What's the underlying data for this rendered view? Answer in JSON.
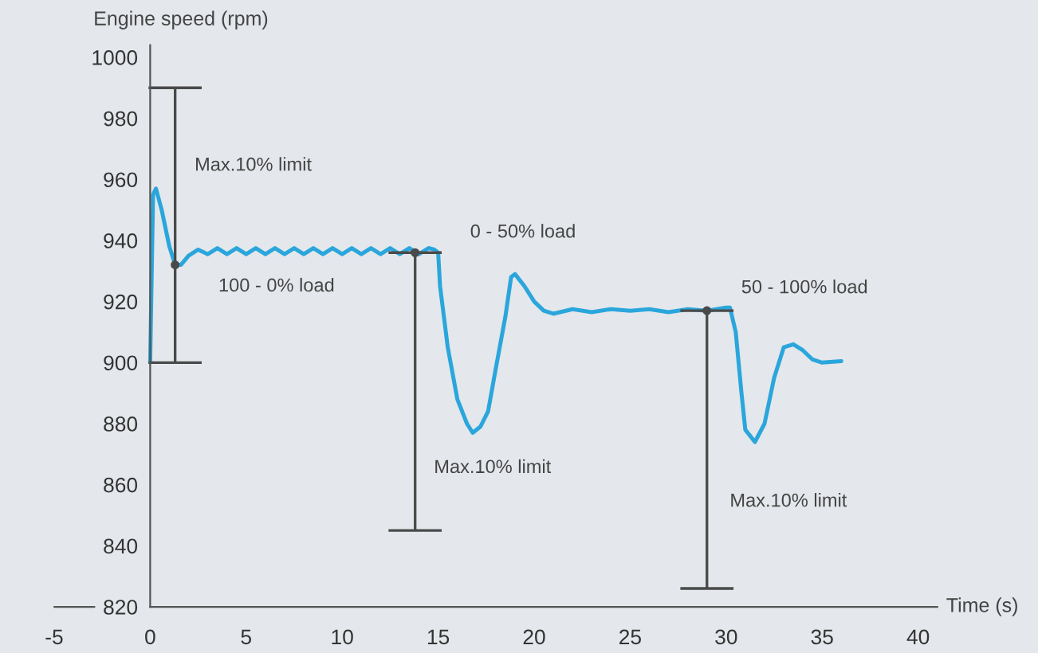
{
  "chart_data": {
    "type": "line",
    "ylabel": "Engine speed (rpm)",
    "xlabel": "Time (s)",
    "xlim": [
      -5,
      41
    ],
    "xticks": [
      -5,
      0,
      5,
      10,
      15,
      20,
      25,
      30,
      35,
      40
    ],
    "ylim": [
      820,
      1004
    ],
    "yticks": [
      820,
      840,
      860,
      880,
      900,
      920,
      940,
      960,
      980,
      1000
    ],
    "grid": false,
    "legend": false,
    "marker": "none",
    "line_style": "solid",
    "series": [
      {
        "color": "#2aa6dc",
        "x": [
          0,
          0.15,
          0.3,
          0.6,
          1,
          1.3,
          1.6,
          2,
          2.5,
          3,
          3.5,
          4,
          4.5,
          5,
          5.5,
          6,
          6.5,
          7,
          7.5,
          8,
          8.5,
          9,
          9.5,
          10,
          10.5,
          11,
          11.5,
          12,
          12.5,
          13,
          13.5,
          14,
          14.5,
          14.8,
          15,
          15.1,
          15.3,
          15.5,
          16,
          16.5,
          16.8,
          17.2,
          17.6,
          18,
          18.5,
          18.8,
          19,
          19.5,
          20,
          20.5,
          21,
          22,
          23,
          24,
          25,
          26,
          27,
          28,
          29,
          30,
          30.2,
          30.5,
          30.8,
          31,
          31.5,
          32,
          32.5,
          33,
          33.5,
          34,
          34.5,
          35,
          36
        ],
        "values": [
          900,
          955,
          957,
          950,
          938,
          932,
          932,
          935,
          937,
          935.5,
          937.5,
          935.5,
          937.5,
          935.5,
          937.5,
          935.5,
          937.5,
          935.5,
          937.5,
          935.5,
          937.5,
          935.5,
          937.5,
          935.5,
          937.5,
          935.5,
          937.5,
          935.5,
          937.5,
          935.5,
          937.5,
          935.5,
          937.5,
          937,
          936,
          925,
          915,
          905,
          888,
          880,
          877,
          879,
          884,
          898,
          915,
          928,
          929,
          925,
          920,
          917,
          916,
          917.5,
          916.5,
          917.5,
          917,
          917.5,
          916.5,
          917.5,
          917,
          918,
          918,
          910,
          890,
          878,
          874,
          880,
          895,
          905,
          906,
          904,
          901,
          900,
          900.5
        ]
      },
      {
        "type": "scatter",
        "color": "#4a4a4a",
        "marker": "circle",
        "x": [
          1.3,
          13.8,
          29
        ],
        "values": [
          932,
          936,
          917
        ],
        "errors": [
          [
            900,
            990
          ],
          [
            845,
            936
          ],
          [
            826,
            917
          ]
        ]
      }
    ],
    "annotations": [
      "Max.10% limit",
      "100 - 0% load",
      "0 - 50% load",
      "Max.10% limit",
      "50 - 100% load",
      "Max.10% limit"
    ]
  }
}
